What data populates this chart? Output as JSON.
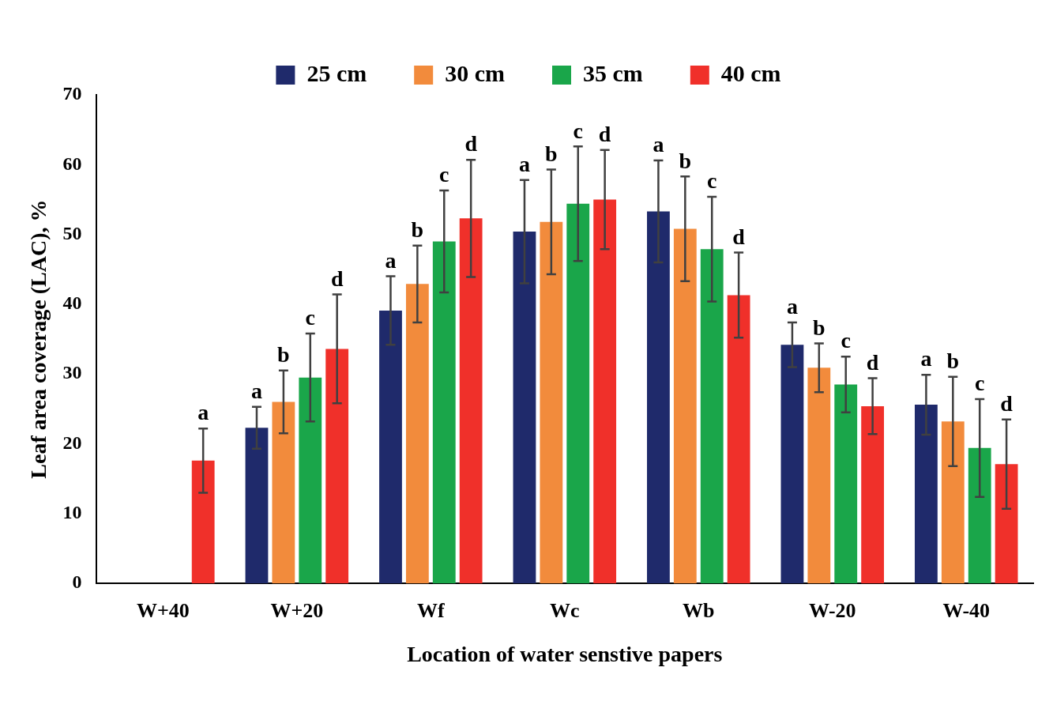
{
  "chart_data": {
    "type": "bar",
    "xlabel": "Location of water senstive papers",
    "ylabel": "Leaf area coverage (LAC), %",
    "categories": [
      "W+40",
      "W+20",
      "Wf",
      "Wc",
      "Wb",
      "W-20",
      "W-40"
    ],
    "series": [
      {
        "name": "25 cm",
        "color": "#1f2a6b",
        "values": [
          0,
          22.3,
          39.1,
          50.4,
          53.3,
          34.2,
          25.6
        ],
        "errors": [
          null,
          3.0,
          4.9,
          7.4,
          7.3,
          3.2,
          4.3
        ],
        "value_labels": [
          null,
          "a",
          "a",
          "a",
          "a",
          "a",
          "a"
        ]
      },
      {
        "name": "30 cm",
        "color": "#f28b3c",
        "values": [
          0,
          26.0,
          42.9,
          51.8,
          50.8,
          30.9,
          23.2
        ],
        "errors": [
          null,
          4.5,
          5.5,
          7.5,
          7.5,
          3.5,
          6.4
        ],
        "value_labels": [
          null,
          "b",
          "b",
          "b",
          "b",
          "b",
          "b"
        ]
      },
      {
        "name": "35 cm",
        "color": "#1aa64a",
        "values": [
          0,
          29.5,
          49.0,
          54.4,
          47.9,
          28.5,
          19.4
        ],
        "errors": [
          null,
          6.3,
          7.3,
          8.2,
          7.5,
          4.0,
          7.0
        ],
        "value_labels": [
          null,
          "c",
          "c",
          "c",
          "c",
          "c",
          "c"
        ]
      },
      {
        "name": "40 cm",
        "color": "#f0302a",
        "values": [
          17.6,
          33.6,
          52.3,
          55.0,
          41.3,
          25.4,
          17.1
        ],
        "errors": [
          4.6,
          7.8,
          8.4,
          7.1,
          6.1,
          4.0,
          6.4
        ],
        "value_labels": [
          "a",
          "d",
          "d",
          "d",
          "d",
          "d",
          "d"
        ]
      }
    ],
    "ylim": [
      0,
      70
    ],
    "yticks": [
      0,
      10,
      20,
      30,
      40,
      50,
      60,
      70
    ],
    "grid": false,
    "legend": "top"
  }
}
